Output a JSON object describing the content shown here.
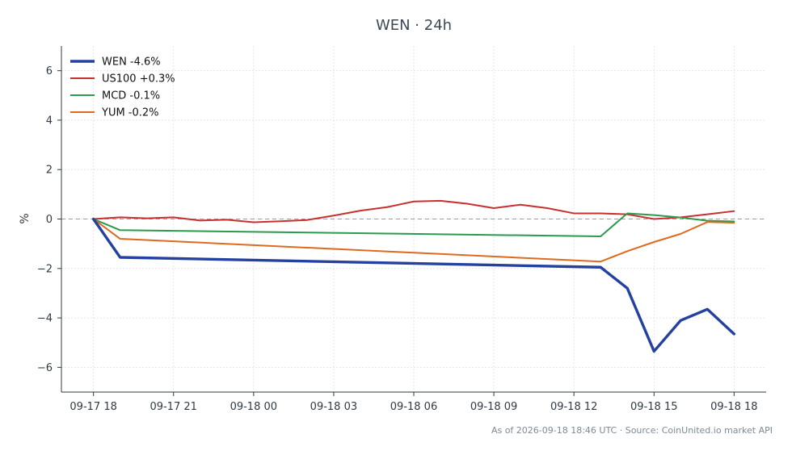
{
  "chart_data": {
    "type": "line",
    "title": "WEN · 24h",
    "ylabel": "%",
    "xlabel": "",
    "ylim": [
      -7,
      7
    ],
    "yticks": [
      6,
      4,
      2,
      0,
      -2,
      -4,
      -6
    ],
    "ytick_labels": [
      "6",
      "4",
      "2",
      "0",
      "−2",
      "−4",
      "−6"
    ],
    "xlim": [
      -1.2,
      25.2
    ],
    "xticks": [
      0,
      3,
      6,
      9,
      12,
      15,
      18,
      21,
      24
    ],
    "xtick_labels": [
      "09-17 18",
      "09-17 21",
      "09-18 00",
      "09-18 03",
      "09-18 06",
      "09-18 09",
      "09-18 12",
      "09-18 15",
      "09-18 18"
    ],
    "grid": true,
    "zero_line": true,
    "legend_position": "top-left",
    "series": [
      {
        "name": "WEN -4.6%",
        "color": "#2441a0",
        "emphasis": true,
        "points": [
          [
            0,
            0
          ],
          [
            1,
            -1.55
          ],
          [
            19,
            -1.95
          ],
          [
            20,
            -2.8
          ],
          [
            21,
            -5.35
          ],
          [
            22,
            -4.1
          ],
          [
            23,
            -3.65
          ],
          [
            24,
            -4.65
          ]
        ]
      },
      {
        "name": "US100 +0.3%",
        "color": "#c8302f",
        "emphasis": false,
        "points": [
          [
            0,
            0
          ],
          [
            1,
            0.07
          ],
          [
            2,
            0.03
          ],
          [
            3,
            0.07
          ],
          [
            4,
            -0.06
          ],
          [
            5,
            -0.03
          ],
          [
            6,
            -0.13
          ],
          [
            7,
            -0.09
          ],
          [
            8,
            -0.04
          ],
          [
            9,
            0.14
          ],
          [
            10,
            0.34
          ],
          [
            11,
            0.48
          ],
          [
            12,
            0.71
          ],
          [
            13,
            0.74
          ],
          [
            14,
            0.62
          ],
          [
            15,
            0.44
          ],
          [
            16,
            0.58
          ],
          [
            17,
            0.44
          ],
          [
            18,
            0.23
          ],
          [
            19,
            0.23
          ],
          [
            20,
            0.19
          ],
          [
            21,
            0.0
          ],
          [
            22,
            0.07
          ],
          [
            23,
            0.19
          ],
          [
            24,
            0.32
          ]
        ]
      },
      {
        "name": "MCD -0.1%",
        "color": "#2a9b4c",
        "emphasis": false,
        "points": [
          [
            0,
            0
          ],
          [
            1,
            -0.45
          ],
          [
            19,
            -0.7
          ],
          [
            20,
            0.23
          ],
          [
            21,
            0.16
          ],
          [
            22,
            0.06
          ],
          [
            23,
            -0.07
          ],
          [
            24,
            -0.1
          ]
        ]
      },
      {
        "name": "YUM -0.2%",
        "color": "#de6a1f",
        "emphasis": false,
        "points": [
          [
            0,
            0
          ],
          [
            1,
            -0.8
          ],
          [
            19,
            -1.72
          ],
          [
            20,
            -1.3
          ],
          [
            21,
            -0.93
          ],
          [
            22,
            -0.6
          ],
          [
            23,
            -0.12
          ],
          [
            24,
            -0.15
          ]
        ]
      }
    ]
  },
  "footer": "As of 2026-09-18 18:46 UTC · Source: CoinUnited.io market API"
}
